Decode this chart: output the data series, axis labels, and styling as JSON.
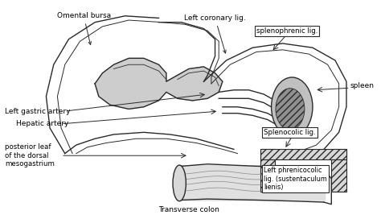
{
  "bg_color": "#ffffff",
  "lc": "#2a2a2a",
  "labels": {
    "omental_bursa": "Omental bursa",
    "left_coronary": "Left coronary lig.",
    "splenophrenic": "splenophrenic lig.",
    "spleen": "spleen",
    "splenocolic": "Splenocolic lig.",
    "left_gastric": "Left gastric artery",
    "hepatic": "Hepatic artery",
    "posterior_leaf": "posterior leaf\nof the dorsal\nmesogastrium",
    "transverse_colon": "Transverse colon",
    "left_phrenico": "Left phrenicocolic\nlig. (sustentaculum\nlienis)"
  }
}
